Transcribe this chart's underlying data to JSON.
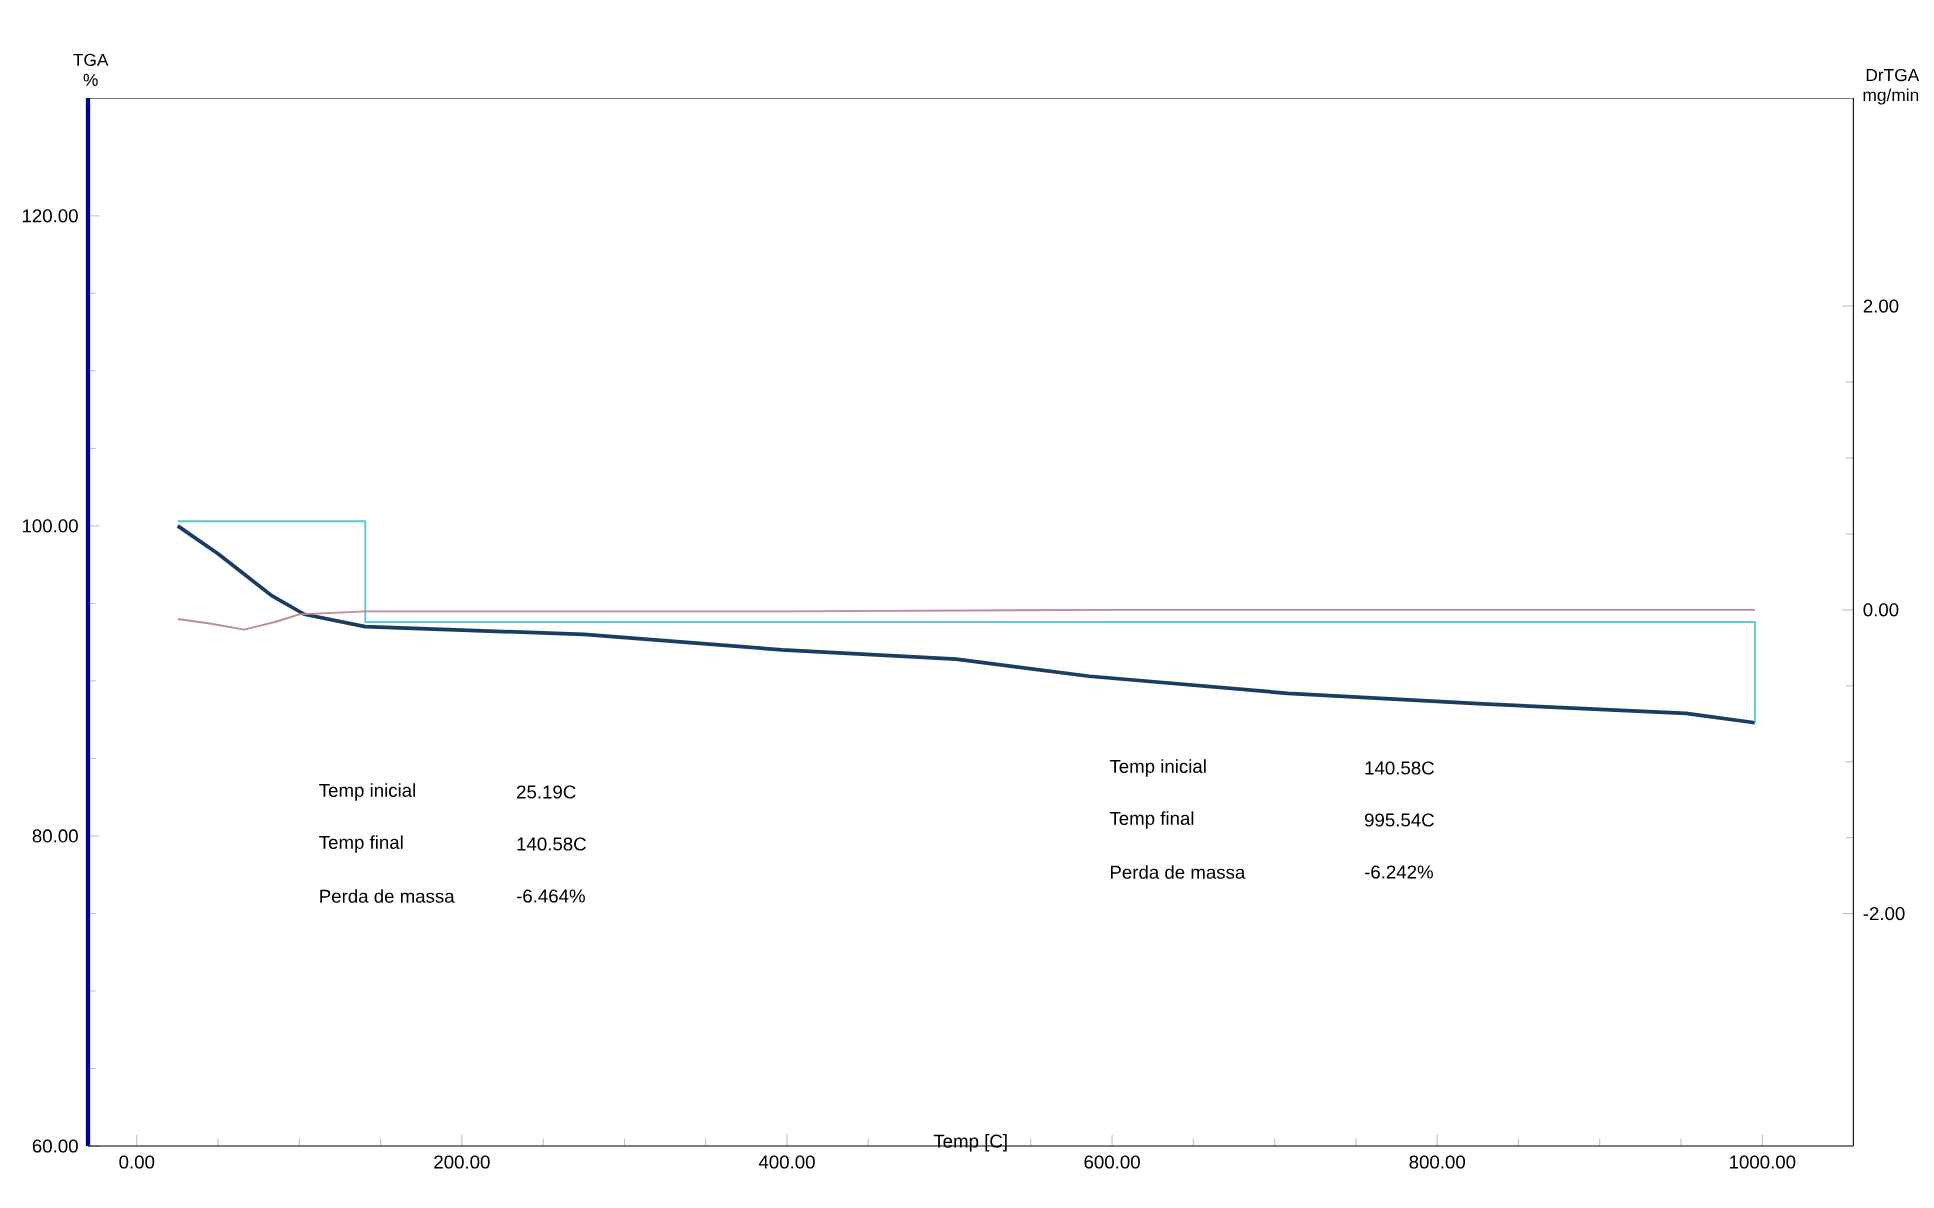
{
  "chart_data": {
    "type": "line",
    "xlabel": "Temp [C]",
    "ylabel": "TGA %",
    "y2label": "DrTGA mg/min",
    "xlim": [
      -30,
      1056
    ],
    "ylim": [
      60,
      127.6
    ],
    "y2lim": [
      -3.53,
      3.37
    ],
    "xticks": [
      {
        "value": 0,
        "label": "0.00"
      },
      {
        "value": 200,
        "label": "200.00"
      },
      {
        "value": 400,
        "label": "400.00"
      },
      {
        "value": 600,
        "label": "600.00"
      },
      {
        "value": 800,
        "label": "800.00"
      },
      {
        "value": 1000,
        "label": "1000.00"
      }
    ],
    "yticks": [
      {
        "value": 60,
        "label": "60.00"
      },
      {
        "value": 80,
        "label": "80.00"
      },
      {
        "value": 100,
        "label": "100.00"
      },
      {
        "value": 120,
        "label": "120.00"
      }
    ],
    "y2ticks": [
      {
        "value": -2,
        "label": "-2.00"
      },
      {
        "value": 0,
        "label": "0.00"
      },
      {
        "value": 2,
        "label": "2.00"
      }
    ],
    "series": [
      {
        "color": "#1b3d63",
        "axis": "y",
        "x": [
          25.19,
          50,
          83,
          103,
          140.58,
          275,
          397,
          504,
          586,
          708,
          831,
          953,
          995.54
        ],
        "values": [
          100,
          98.2,
          95.5,
          94.3,
          93.5,
          93.0,
          92.0,
          91.4,
          90.3,
          89.2,
          88.5,
          87.9,
          87.3
        ]
      },
      {
        "color": "#c08a96",
        "axis": "y2",
        "x": [
          25.19,
          45,
          66,
          85,
          100,
          140.58,
          400,
          600,
          995.54
        ],
        "values": [
          -0.06,
          -0.09,
          -0.13,
          -0.08,
          -0.03,
          -0.01,
          -0.01,
          0.0,
          0.0
        ]
      },
      {
        "color": "#5cc8d0",
        "axis": "y",
        "x": [
          25.19,
          140.58,
          140.58,
          995.54,
          995.54
        ],
        "values": [
          100.3,
          100.3,
          93.8,
          93.8,
          87.3
        ]
      }
    ],
    "annotations": [
      "Temp inicial",
      "25.19C",
      "Temp final",
      "140.58C",
      "Perda de massa",
      "-6.464%",
      "Temp inicial",
      "140.58C",
      "Temp final",
      "995.54C",
      "Perda de massa",
      "-6.242%"
    ]
  }
}
